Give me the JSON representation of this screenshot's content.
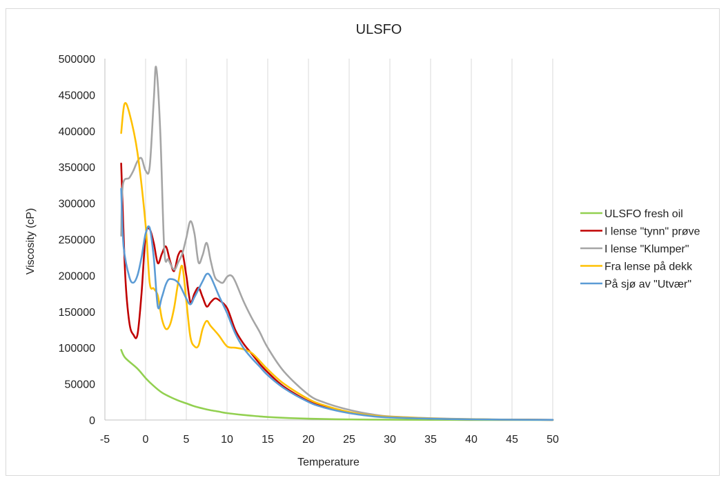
{
  "chart_data": {
    "type": "line",
    "title": "ULSFO",
    "xlabel": "Temperature",
    "ylabel": "Viscosity (cP)",
    "xlim": [
      -5,
      50
    ],
    "ylim": [
      0,
      500000
    ],
    "x_ticks": [
      -5,
      0,
      5,
      10,
      15,
      20,
      25,
      30,
      35,
      40,
      45,
      50
    ],
    "y_ticks": [
      0,
      50000,
      100000,
      150000,
      200000,
      250000,
      300000,
      350000,
      400000,
      450000,
      500000
    ],
    "grid": "vertical",
    "legend_position": "right",
    "series": [
      {
        "name": "ULSFO fresh oil",
        "color": "#92d050",
        "points": [
          [
            -3,
            97000
          ],
          [
            -2.5,
            86000
          ],
          [
            -1,
            71000
          ],
          [
            0,
            58000
          ],
          [
            1,
            47000
          ],
          [
            2,
            38000
          ],
          [
            3,
            32000
          ],
          [
            4,
            27000
          ],
          [
            5,
            23000
          ],
          [
            6,
            19000
          ],
          [
            7,
            16000
          ],
          [
            8,
            13500
          ],
          [
            9,
            11500
          ],
          [
            10,
            9500
          ],
          [
            12,
            7000
          ],
          [
            14,
            5000
          ],
          [
            16,
            3500
          ],
          [
            20,
            1800
          ],
          [
            25,
            800
          ],
          [
            30,
            400
          ],
          [
            35,
            200
          ],
          [
            40,
            100
          ],
          [
            45,
            50
          ],
          [
            50,
            20
          ]
        ]
      },
      {
        "name": "I lense \"tynn\" prøve",
        "color": "#c00000",
        "points": [
          [
            -3,
            355000
          ],
          [
            -2.5,
            200000
          ],
          [
            -2,
            135000
          ],
          [
            -1.5,
            118000
          ],
          [
            -1,
            118000
          ],
          [
            -0.5,
            175000
          ],
          [
            0,
            255000
          ],
          [
            0.5,
            264000
          ],
          [
            1,
            245000
          ],
          [
            1.5,
            217000
          ],
          [
            2,
            230000
          ],
          [
            2.5,
            240000
          ],
          [
            3,
            220000
          ],
          [
            3.5,
            206000
          ],
          [
            4,
            228000
          ],
          [
            4.5,
            232000
          ],
          [
            5,
            200000
          ],
          [
            5.5,
            163000
          ],
          [
            6,
            175000
          ],
          [
            6.5,
            183000
          ],
          [
            7,
            170000
          ],
          [
            7.5,
            157000
          ],
          [
            8,
            163000
          ],
          [
            8.5,
            168000
          ],
          [
            9,
            166000
          ],
          [
            10,
            155000
          ],
          [
            11,
            125000
          ],
          [
            12,
            106000
          ],
          [
            13,
            92000
          ],
          [
            14,
            78000
          ],
          [
            15,
            66000
          ],
          [
            17,
            46000
          ],
          [
            20,
            26000
          ],
          [
            22,
            18000
          ],
          [
            25,
            10000
          ],
          [
            28,
            5500
          ],
          [
            30,
            4000
          ],
          [
            35,
            2000
          ],
          [
            40,
            1000
          ],
          [
            45,
            500
          ],
          [
            50,
            200
          ]
        ]
      },
      {
        "name": "I lense \"Klumper\"",
        "color": "#a5a5a5",
        "points": [
          [
            -3,
            255000
          ],
          [
            -2.8,
            325000
          ],
          [
            -2,
            335000
          ],
          [
            -1.5,
            345000
          ],
          [
            -1,
            358000
          ],
          [
            -0.5,
            362000
          ],
          [
            0,
            345000
          ],
          [
            0.5,
            350000
          ],
          [
            1,
            442000
          ],
          [
            1.3,
            488000
          ],
          [
            1.8,
            400000
          ],
          [
            2.3,
            235000
          ],
          [
            2.8,
            222000
          ],
          [
            3.5,
            208000
          ],
          [
            4,
            218000
          ],
          [
            4.5,
            230000
          ],
          [
            5,
            252000
          ],
          [
            5.5,
            275000
          ],
          [
            6,
            258000
          ],
          [
            6.5,
            218000
          ],
          [
            7,
            228000
          ],
          [
            7.5,
            245000
          ],
          [
            8,
            220000
          ],
          [
            8.5,
            198000
          ],
          [
            9,
            192000
          ],
          [
            9.5,
            190000
          ],
          [
            10,
            198000
          ],
          [
            10.5,
            200000
          ],
          [
            11,
            192000
          ],
          [
            12,
            165000
          ],
          [
            13,
            142000
          ],
          [
            14,
            122000
          ],
          [
            15,
            100000
          ],
          [
            17,
            67000
          ],
          [
            20,
            35000
          ],
          [
            22,
            24000
          ],
          [
            25,
            14000
          ],
          [
            28,
            7500
          ],
          [
            30,
            5000
          ],
          [
            35,
            2500
          ],
          [
            40,
            1200
          ],
          [
            45,
            600
          ],
          [
            50,
            300
          ]
        ]
      },
      {
        "name": "Fra lense på dekk",
        "color": "#ffc000",
        "points": [
          [
            -3,
            397000
          ],
          [
            -2.6,
            437000
          ],
          [
            -2,
            425000
          ],
          [
            -1,
            370000
          ],
          [
            0,
            270000
          ],
          [
            0.5,
            190000
          ],
          [
            1,
            182000
          ],
          [
            1.5,
            172000
          ],
          [
            2,
            140000
          ],
          [
            2.5,
            126000
          ],
          [
            3,
            132000
          ],
          [
            3.5,
            155000
          ],
          [
            4,
            190000
          ],
          [
            4.5,
            213000
          ],
          [
            5,
            165000
          ],
          [
            5.5,
            115000
          ],
          [
            6,
            102000
          ],
          [
            6.5,
            103000
          ],
          [
            7,
            126000
          ],
          [
            7.5,
            137000
          ],
          [
            8,
            130000
          ],
          [
            9,
            117000
          ],
          [
            10,
            102000
          ],
          [
            11,
            100000
          ],
          [
            12,
            98000
          ],
          [
            13,
            93000
          ],
          [
            14,
            82000
          ],
          [
            15,
            70000
          ],
          [
            17,
            50000
          ],
          [
            20,
            29000
          ],
          [
            22,
            20000
          ],
          [
            25,
            11000
          ],
          [
            28,
            6000
          ],
          [
            30,
            4500
          ],
          [
            35,
            2200
          ],
          [
            40,
            1100
          ],
          [
            45,
            500
          ],
          [
            50,
            200
          ]
        ]
      },
      {
        "name": "På sjø av \"Utvær\"",
        "color": "#5b9bd5",
        "points": [
          [
            -3,
            320000
          ],
          [
            -2.7,
            240000
          ],
          [
            -2,
            198000
          ],
          [
            -1.5,
            190000
          ],
          [
            -1,
            200000
          ],
          [
            -0.5,
            225000
          ],
          [
            0,
            258000
          ],
          [
            0.5,
            266000
          ],
          [
            1,
            225000
          ],
          [
            1.5,
            157000
          ],
          [
            2,
            170000
          ],
          [
            2.5,
            188000
          ],
          [
            3,
            195000
          ],
          [
            4,
            190000
          ],
          [
            5,
            168000
          ],
          [
            5.5,
            160000
          ],
          [
            6,
            170000
          ],
          [
            7,
            192000
          ],
          [
            7.5,
            202000
          ],
          [
            8,
            198000
          ],
          [
            9,
            172000
          ],
          [
            10,
            148000
          ],
          [
            11,
            120000
          ],
          [
            12,
            100000
          ],
          [
            13,
            86000
          ],
          [
            14,
            74000
          ],
          [
            15,
            62000
          ],
          [
            17,
            44000
          ],
          [
            20,
            25000
          ],
          [
            22,
            17000
          ],
          [
            25,
            9500
          ],
          [
            28,
            5000
          ],
          [
            30,
            3500
          ],
          [
            35,
            1800
          ],
          [
            40,
            900
          ],
          [
            45,
            400
          ],
          [
            50,
            150
          ]
        ]
      }
    ]
  }
}
